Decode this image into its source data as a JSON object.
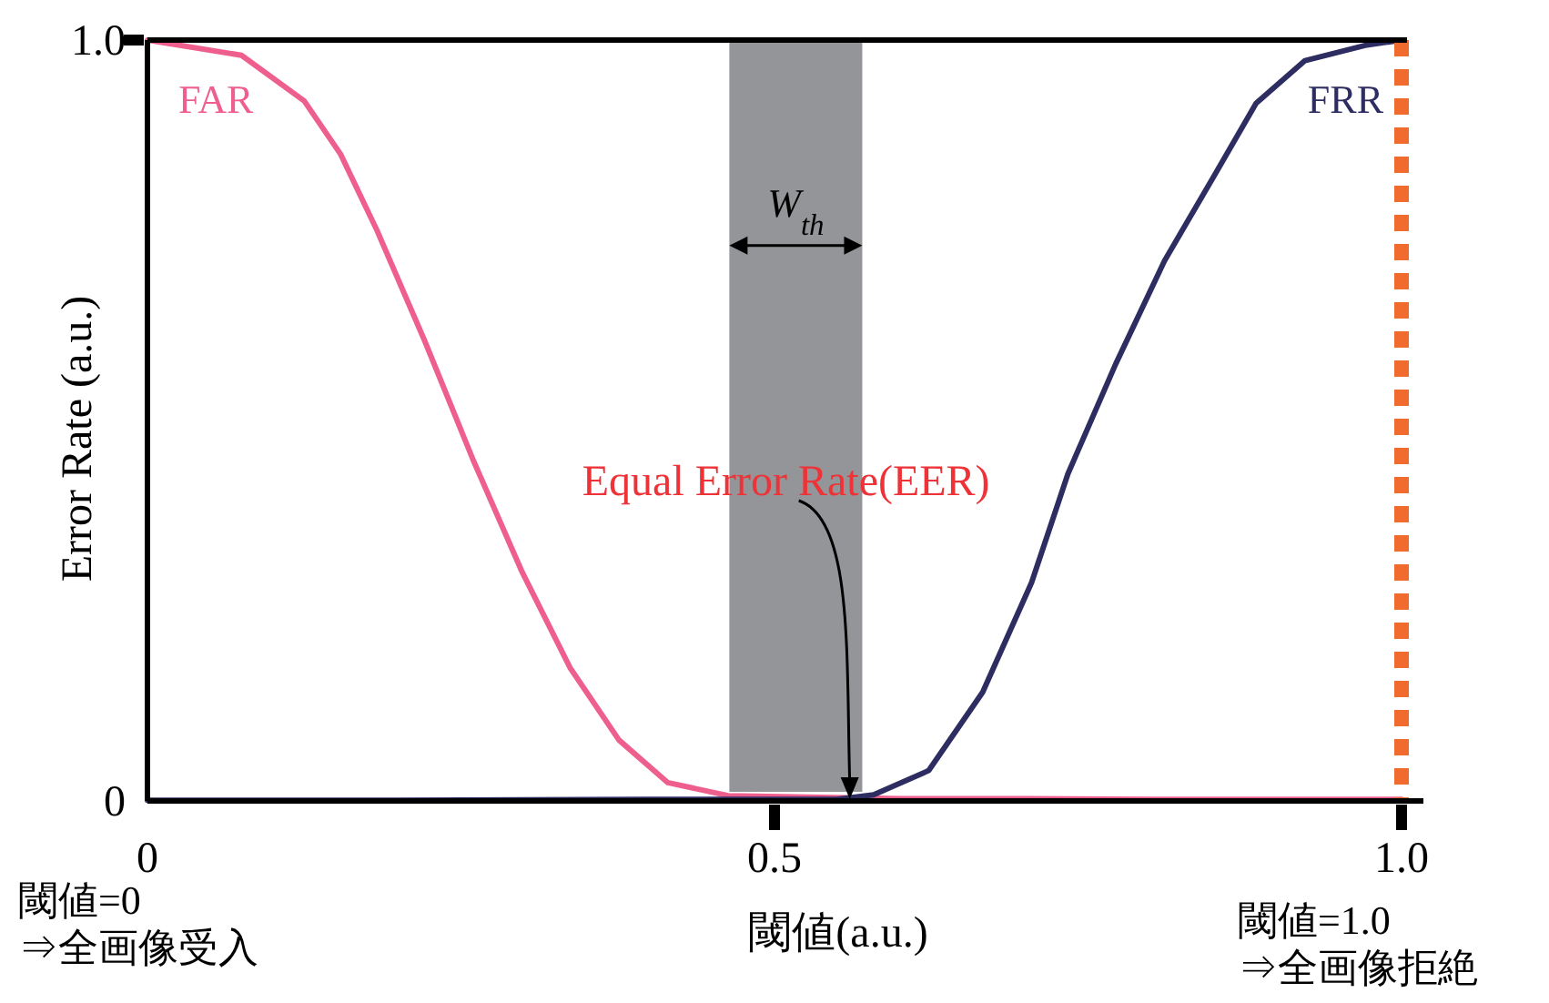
{
  "chart_data": {
    "type": "line",
    "ylabel": "Error Rate (a.u.)",
    "xlabel": "閾値(a.u.)",
    "x": [
      0,
      0.075,
      0.125,
      0.154,
      0.183,
      0.221,
      0.26,
      0.299,
      0.337,
      0.376,
      0.415,
      0.463,
      0.6,
      0.7,
      0.8,
      0.9,
      1
    ],
    "series": [
      {
        "name": "FAR",
        "color": "#ee5f8e",
        "values": [
          1,
          0.98,
          0.92,
          0.85,
          0.75,
          0.605,
          0.447,
          0.3,
          0.175,
          0.08,
          0.024,
          0.007,
          0.003,
          0.003,
          0.002,
          0.002,
          0.002
        ]
      },
      {
        "name": "FRR",
        "color": "#2e2d62",
        "x": [
          0,
          0.2,
          0.4,
          0.5,
          0.55,
          0.579,
          0.623,
          0.666,
          0.705,
          0.734,
          0.772,
          0.811,
          0.85,
          0.884,
          0.923,
          0.971,
          1
        ],
        "values": [
          0.001,
          0.001,
          0.002,
          0.002,
          0.002,
          0.008,
          0.04,
          0.143,
          0.287,
          0.43,
          0.574,
          0.71,
          0.82,
          0.917,
          0.973,
          0.993,
          1
        ]
      }
    ],
    "xlim": [
      0,
      1
    ],
    "ylim": [
      0,
      1
    ],
    "xticks": [
      0,
      0.5,
      {
        "value": 1,
        "label": "1.0"
      }
    ],
    "yticks": [
      0,
      {
        "value": 1,
        "label": "1.0"
      }
    ],
    "bands": [
      {
        "axis": "x",
        "from": 0.464,
        "to": 0.57,
        "label": "W$_{th}$",
        "color": "#939598"
      }
    ],
    "ref_lines": [
      {
        "axis": "x",
        "value": 1,
        "color": "#f26b2e",
        "line_style": "dotted"
      }
    ],
    "annotations": [
      "Equal Error Rate(EER)",
      "閾値=0\n⇒全画像受入",
      "閾値=1.0\n⇒全画像拒絶"
    ]
  }
}
